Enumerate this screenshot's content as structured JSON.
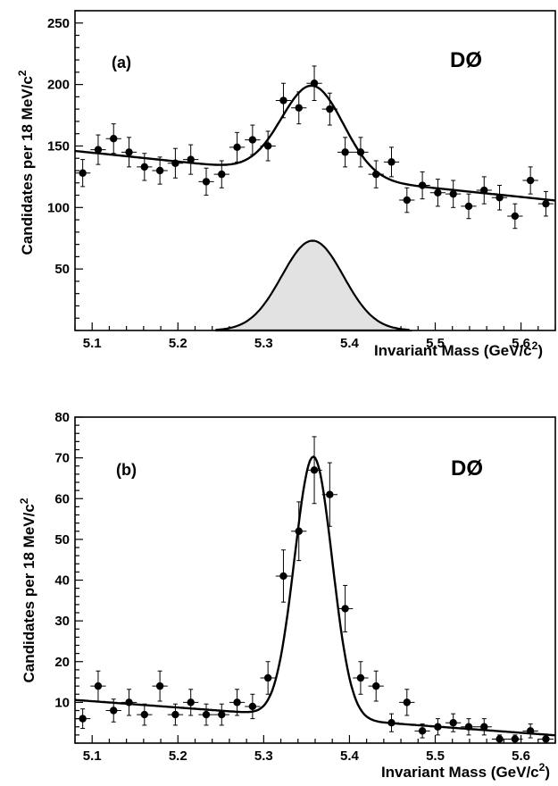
{
  "chart_data": [
    {
      "type": "scatter",
      "panel_label": "(a)",
      "experiment": "DØ",
      "xlabel_main": "Invariant Mass  (GeV/c",
      "xlabel_sup": "2",
      "xlabel_end": ")",
      "ylabel_main": "Candidates per  18 MeV/c",
      "ylabel_sup": "2",
      "xlim": [
        5.08,
        5.64
      ],
      "ylim": [
        0,
        260
      ],
      "xticks": [
        5.1,
        5.2,
        5.3,
        5.4,
        5.5,
        5.6
      ],
      "xtick_labels": [
        "5.1",
        "5.2",
        "5.3",
        "5.4",
        "5.5",
        "5.6"
      ],
      "yticks": [
        50,
        100,
        150,
        200,
        250
      ],
      "ytick_labels": [
        "50",
        "100",
        "150",
        "200",
        "250"
      ],
      "bin_half_width": 0.009,
      "x": [
        5.089,
        5.107,
        5.125,
        5.143,
        5.161,
        5.179,
        5.197,
        5.215,
        5.233,
        5.251,
        5.269,
        5.287,
        5.305,
        5.323,
        5.341,
        5.359,
        5.377,
        5.395,
        5.413,
        5.431,
        5.449,
        5.467,
        5.485,
        5.503,
        5.521,
        5.539,
        5.557,
        5.575,
        5.593,
        5.611,
        5.629
      ],
      "y": [
        128,
        147,
        156,
        145,
        133,
        130,
        136,
        139,
        121,
        127,
        149,
        155,
        150,
        187,
        181,
        201,
        180,
        145,
        145,
        127,
        137,
        106,
        118,
        112,
        111,
        101,
        114,
        108,
        93,
        122,
        103
      ],
      "yerr": [
        11,
        12,
        12,
        12,
        11,
        11,
        12,
        12,
        11,
        11,
        12,
        12,
        12,
        14,
        13,
        14,
        13,
        12,
        12,
        11,
        12,
        10,
        11,
        11,
        11,
        10,
        11,
        10,
        10,
        11,
        10
      ],
      "fit": {
        "background_at_x0": 146,
        "background_slope": -72,
        "signal_amplitude": 73,
        "signal_mean": 5.357,
        "signal_sigma": 0.036,
        "signal_range": [
          5.245,
          5.47
        ]
      }
    },
    {
      "type": "scatter",
      "panel_label": "(b)",
      "experiment": "DØ",
      "xlabel_main": "Invariant Mass  (GeV/c",
      "xlabel_sup": "2",
      "xlabel_end": ")",
      "ylabel_main": "Candidates per 18 MeV/c",
      "ylabel_sup": "2",
      "xlim": [
        5.08,
        5.64
      ],
      "ylim": [
        0,
        80
      ],
      "xticks": [
        5.1,
        5.2,
        5.3,
        5.4,
        5.5,
        5.6
      ],
      "xtick_labels": [
        "5.1",
        "5.2",
        "5.3",
        "5.4",
        "5.5",
        "5.6"
      ],
      "yticks": [
        10,
        20,
        30,
        40,
        50,
        60,
        70,
        80
      ],
      "ytick_labels": [
        "10",
        "20",
        "30",
        "40",
        "50",
        "60",
        "70",
        "80"
      ],
      "bin_half_width": 0.009,
      "x": [
        5.089,
        5.107,
        5.125,
        5.143,
        5.161,
        5.179,
        5.197,
        5.215,
        5.233,
        5.251,
        5.269,
        5.287,
        5.305,
        5.323,
        5.341,
        5.359,
        5.377,
        5.395,
        5.413,
        5.431,
        5.449,
        5.467,
        5.485,
        5.503,
        5.521,
        5.539,
        5.557,
        5.575,
        5.593,
        5.611,
        5.629
      ],
      "y": [
        6,
        14,
        8,
        10,
        7,
        14,
        7,
        10,
        7,
        7,
        10,
        9,
        16,
        41,
        52,
        67,
        61,
        33,
        16,
        14,
        5,
        10,
        3,
        4,
        5,
        4,
        4,
        1,
        1,
        3,
        1
      ],
      "yerr": [
        2.4,
        3.7,
        2.8,
        3.2,
        2.6,
        3.7,
        2.6,
        3.2,
        2.6,
        2.6,
        3.2,
        3,
        4,
        6.4,
        7.2,
        8.2,
        7.8,
        5.7,
        4,
        3.7,
        2.2,
        3.2,
        1.7,
        2,
        2.2,
        2,
        2,
        1,
        1,
        1.7,
        1
      ],
      "fit": {
        "background_at_x0": 10.6,
        "background_slope": -15.5,
        "signal_amplitude": 64,
        "signal_mean": 5.358,
        "signal_sigma": 0.022
      }
    }
  ]
}
